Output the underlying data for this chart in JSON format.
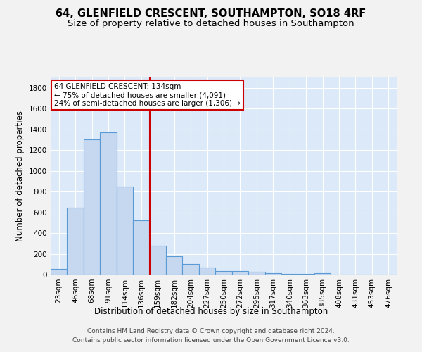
{
  "title": "64, GLENFIELD CRESCENT, SOUTHAMPTON, SO18 4RF",
  "subtitle": "Size of property relative to detached houses in Southampton",
  "xlabel": "Distribution of detached houses by size in Southampton",
  "ylabel": "Number of detached properties",
  "categories": [
    "23sqm",
    "46sqm",
    "68sqm",
    "91sqm",
    "114sqm",
    "136sqm",
    "159sqm",
    "182sqm",
    "204sqm",
    "227sqm",
    "250sqm",
    "272sqm",
    "295sqm",
    "317sqm",
    "340sqm",
    "363sqm",
    "385sqm",
    "408sqm",
    "431sqm",
    "453sqm",
    "476sqm"
  ],
  "values": [
    55,
    645,
    1300,
    1370,
    845,
    525,
    275,
    175,
    105,
    65,
    35,
    35,
    25,
    12,
    8,
    8,
    12,
    0,
    0,
    0,
    0
  ],
  "bar_color": "#c5d8f0",
  "bar_edge_color": "#5b9bd5",
  "vline_x": 5.5,
  "vline_color": "#cc0000",
  "annotation_text": "64 GLENFIELD CRESCENT: 134sqm\n← 75% of detached houses are smaller (4,091)\n24% of semi-detached houses are larger (1,306) →",
  "annotation_box_color": "#ffffff",
  "annotation_box_edge": "#cc0000",
  "ylim": [
    0,
    1900
  ],
  "yticks": [
    0,
    200,
    400,
    600,
    800,
    1000,
    1200,
    1400,
    1600,
    1800
  ],
  "background_color": "#dce9f8",
  "grid_color": "#ffffff",
  "fig_background": "#f2f2f2",
  "footer": "Contains HM Land Registry data © Crown copyright and database right 2024.\nContains public sector information licensed under the Open Government Licence v3.0.",
  "title_fontsize": 10.5,
  "subtitle_fontsize": 9.5,
  "axis_label_fontsize": 8.5,
  "tick_fontsize": 7.5,
  "footer_fontsize": 6.5,
  "ann_fontsize": 7.5
}
